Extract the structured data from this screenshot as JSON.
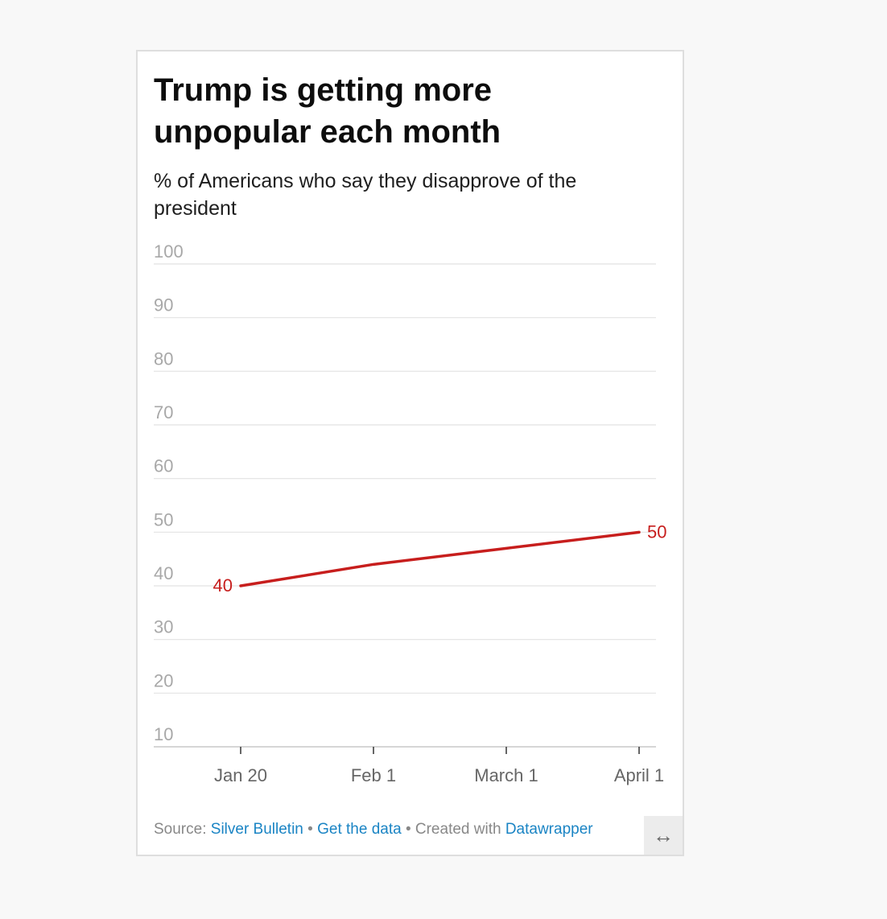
{
  "chart_data": {
    "type": "line",
    "title": "Trump is getting more unpopular each month",
    "subtitle": "% of Americans who say they disapprove of the president",
    "x_ticks": [
      "Jan 20",
      "Feb 1",
      "March 1",
      "April 1"
    ],
    "y_ticks": [
      100,
      90,
      80,
      70,
      60,
      50,
      40,
      30,
      20,
      10
    ],
    "ylim": [
      10,
      100
    ],
    "series": [
      {
        "name": "Disapprove",
        "color": "#c71e1d",
        "points": [
          {
            "x": "Jan 20",
            "y": 40
          },
          {
            "x": "Feb 1",
            "y": 44
          },
          {
            "x": "March 1",
            "y": 47
          },
          {
            "x": "April 1",
            "y": 50
          }
        ],
        "labels": [
          {
            "x": "Jan 20",
            "y": 40,
            "text": "40",
            "side": "left"
          },
          {
            "x": "April 1",
            "y": 50,
            "text": "50",
            "side": "right"
          }
        ]
      }
    ],
    "grid": true
  },
  "footer": {
    "source_prefix": "Source: ",
    "source_link": "Silver Bulletin",
    "separator1": " • ",
    "get_data": "Get the data",
    "separator2": " • Created with ",
    "tool": "Datawrapper"
  },
  "icons": {
    "resize": "↔"
  }
}
